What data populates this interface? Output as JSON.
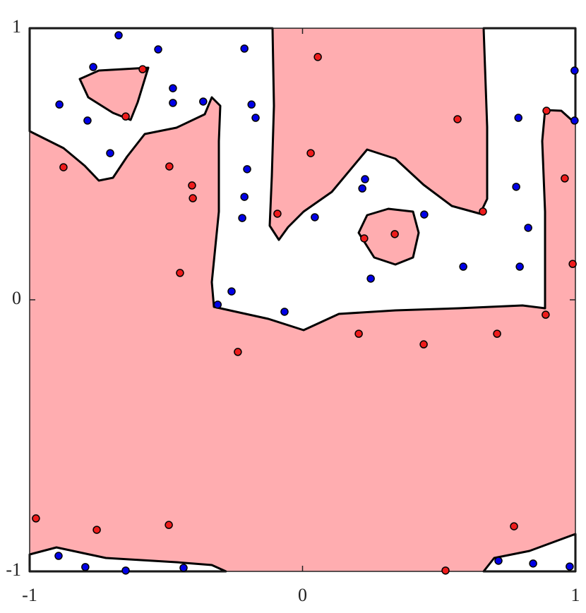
{
  "chart_data": {
    "type": "scatter",
    "xlim": [
      -1,
      1
    ],
    "ylim": [
      -1,
      1
    ],
    "xticks": [
      -1,
      0,
      1
    ],
    "yticks": [
      -1,
      0,
      1
    ],
    "series": [
      {
        "color": "#0000e6",
        "x": [
          -0.674,
          -0.529,
          -0.767,
          -0.891,
          -0.788,
          -0.475,
          -0.475,
          -0.364,
          -0.213,
          -0.187,
          -0.172,
          -0.705,
          -0.203,
          -0.213,
          -0.221,
          0.229,
          0.219,
          0.045,
          0.446,
          0.997,
          0.997,
          0.791,
          0.783,
          0.827,
          0.796,
          0.589,
          0.25,
          -0.26,
          -0.311,
          -0.066,
          -0.894,
          -0.796,
          -0.648,
          -0.436,
          0.718,
          0.845,
          0.979
        ],
        "values": [
          0.974,
          0.922,
          0.857,
          0.719,
          0.66,
          0.779,
          0.725,
          0.73,
          0.925,
          0.719,
          0.67,
          0.54,
          0.481,
          0.379,
          0.301,
          0.444,
          0.41,
          0.304,
          0.314,
          0.844,
          0.66,
          0.67,
          0.416,
          0.265,
          0.122,
          0.122,
          0.078,
          0.031,
          -0.018,
          -0.044,
          -0.943,
          -0.984,
          -0.997,
          -0.987,
          -0.961,
          -0.971,
          -0.982
        ]
      },
      {
        "color": "#ee1c1c",
        "x": [
          -0.586,
          -0.648,
          -0.876,
          -0.488,
          -0.405,
          -0.402,
          -0.449,
          0.056,
          0.03,
          -0.092,
          0.568,
          0.338,
          0.226,
          0.661,
          0.894,
          0.961,
          0.99,
          0.891,
          0.713,
          0.444,
          0.206,
          -0.237,
          -0.977,
          -0.754,
          -0.49,
          0.775,
          0.524
        ],
        "values": [
          0.849,
          0.675,
          0.488,
          0.491,
          0.421,
          0.374,
          0.099,
          0.894,
          0.54,
          0.317,
          0.665,
          0.242,
          0.226,
          0.325,
          0.696,
          0.447,
          0.132,
          -0.055,
          -0.125,
          -0.164,
          -0.125,
          -0.192,
          -0.805,
          -0.847,
          -0.829,
          -0.834,
          -0.997
        ]
      }
    ]
  }
}
